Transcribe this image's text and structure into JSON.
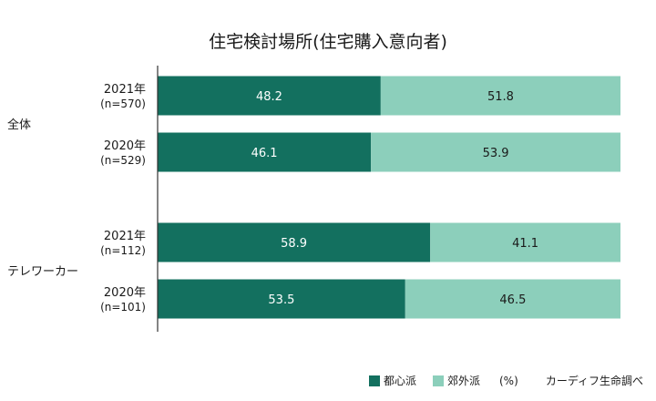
{
  "chart_data": {
    "type": "bar",
    "orientation": "horizontal",
    "stacked": true,
    "title": "住宅検討場所(住宅購入意向者)",
    "xlim": [
      0,
      100
    ],
    "unit": "(%)",
    "source": "カーディフ生命調べ",
    "colors": {
      "urban": "#13705f",
      "suburban": "#8ccfbb",
      "axis": "#333333"
    },
    "groups": [
      {
        "label": "全体",
        "rows": [
          {
            "year": "2021年",
            "n": "(n=570)"
          },
          {
            "year": "2020年",
            "n": "(n=529)"
          }
        ]
      },
      {
        "label": "テレワーカー",
        "rows": [
          {
            "year": "2021年",
            "n": "(n=112)"
          },
          {
            "year": "2020年",
            "n": "(n=101)"
          }
        ]
      }
    ],
    "series": [
      {
        "name": "都心派",
        "key": "urban",
        "values": [
          "48.2",
          "46.1",
          "58.9",
          "53.5"
        ]
      },
      {
        "name": "郊外派",
        "key": "suburban",
        "values": [
          "51.8",
          "53.9",
          "41.1",
          "46.5"
        ]
      }
    ]
  }
}
